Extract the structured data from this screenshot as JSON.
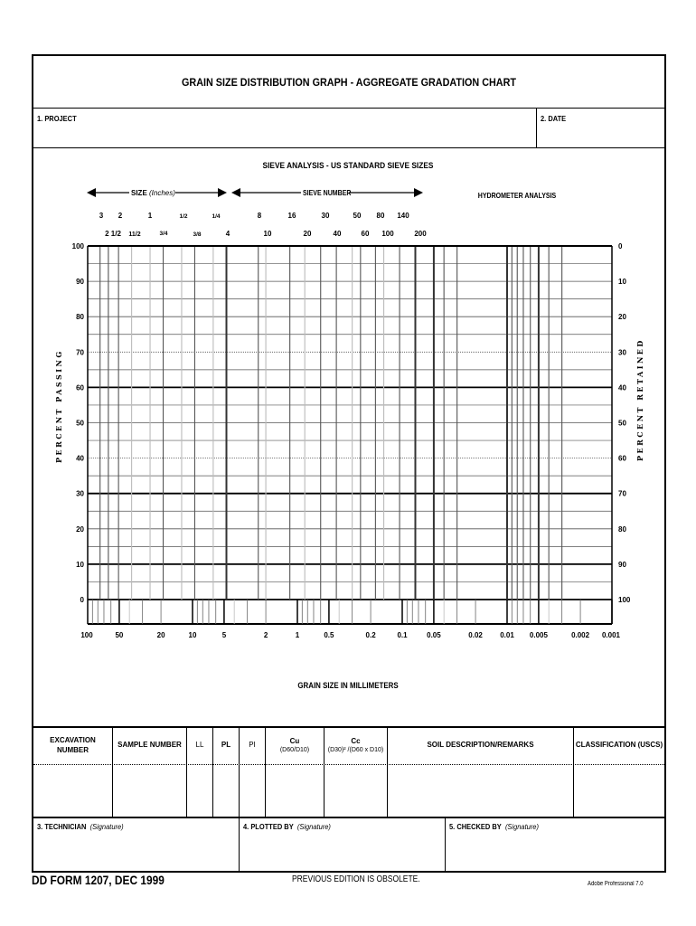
{
  "title": "GRAIN SIZE DISTRIBUTION GRAPH - AGGREGATE GRADATION CHART",
  "fields": {
    "project_label": "1. PROJECT",
    "project_value": "",
    "date_label": "2. DATE",
    "date_value": ""
  },
  "chart": {
    "section_title": "SIEVE ANALYSIS - US STANDARD SIEVE SIZES",
    "size_label": "SIZE",
    "size_unit": "(Inches)",
    "sieve_number_label": "SIEVE NUMBER",
    "hydrometer_label": "HYDROMETER ANALYSIS",
    "size_row1": [
      "3",
      "2",
      "1",
      "1/2",
      "1/4"
    ],
    "size_row2": [
      "2 1/2",
      "11/2",
      "3/4",
      "3/8",
      "4"
    ],
    "sieve_row1": [
      "8",
      "16",
      "30",
      "50",
      "80",
      "140"
    ],
    "sieve_row2": [
      "10",
      "20",
      "40",
      "60",
      "100",
      "200"
    ],
    "left_axis_title": "PERCENT PASSING",
    "right_axis_title": "PERCENT RETAINED",
    "left_ticks": [
      "100",
      "90",
      "80",
      "70",
      "60",
      "50",
      "40",
      "30",
      "20",
      "10",
      "0"
    ],
    "right_ticks": [
      "0",
      "10",
      "20",
      "30",
      "40",
      "50",
      "60",
      "70",
      "80",
      "90",
      "100"
    ],
    "x_ticks": [
      "100",
      "50",
      "20",
      "10",
      "5",
      "2",
      "1",
      "0.5",
      "0.2",
      "0.1",
      "0.05",
      "0.02",
      "0.01",
      "0.005",
      "0.002",
      "0.001"
    ],
    "x_axis_title": "GRAIN SIZE IN MILLIMETERS",
    "x_scale": "log",
    "x_range_mm": [
      100,
      0.001
    ],
    "y_range_percent": [
      0,
      100
    ]
  },
  "table": {
    "headers": {
      "excavation": "EXCAVATION NUMBER",
      "sample": "SAMPLE NUMBER",
      "ll": "LL",
      "pl": "PL",
      "pi": "PI",
      "cu": "Cu",
      "cu_formula": "(D60/D10)",
      "cc": "Cc",
      "cc_formula": "(D30)² /(D60 x D10)",
      "soil": "SOIL DESCRIPTION/REMARKS",
      "classification": "CLASSIFICATION (USCS)"
    }
  },
  "signatures": {
    "technician": "3. TECHNICIAN",
    "plotted_by": "4. PLOTTED BY",
    "checked_by": "5. CHECKED BY",
    "signature_hint": "(Signature)"
  },
  "footer": {
    "form_id": "DD FORM 1207, DEC 1999",
    "edition_note": "PREVIOUS EDITION IS OBSOLETE.",
    "software": "Adobe Professional 7.0"
  }
}
